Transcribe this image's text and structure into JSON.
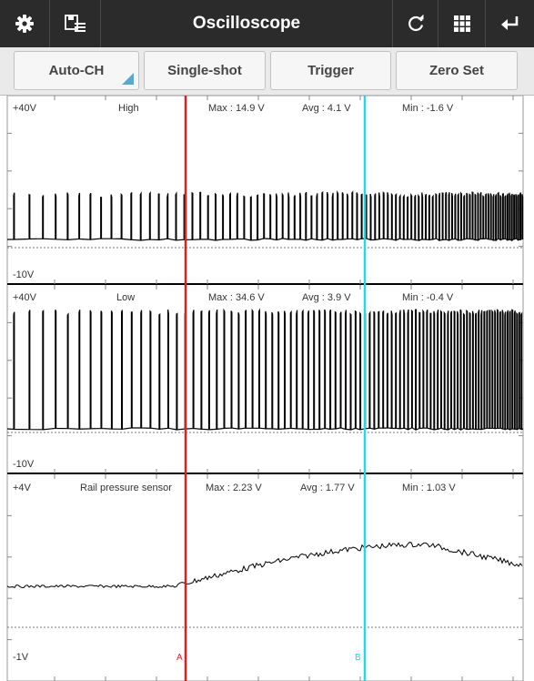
{
  "toolbar": {
    "title": "Oscilloscope",
    "left_icons": [
      "gear-icon",
      "save-list-icon"
    ],
    "right_icons": [
      "refresh-icon",
      "grid-icon",
      "back-icon"
    ]
  },
  "buttons": {
    "auto_ch": "Auto-CH",
    "single_shot": "Single-shot",
    "trigger": "Trigger",
    "zero_set": "Zero Set"
  },
  "channels": [
    {
      "name": "High",
      "top_scale": "+40V",
      "bottom_scale": "-10V",
      "max": "Max : 14.9 V",
      "avg": "Avg : 4.1 V",
      "min": "Min : -1.6 V"
    },
    {
      "name": "Low",
      "top_scale": "+40V",
      "bottom_scale": "-10V",
      "max": "Max : 34.6 V",
      "avg": "Avg : 3.9 V",
      "min": "Min : -0.4 V"
    },
    {
      "name": "Rail pressure sensor",
      "top_scale": "+4V",
      "bottom_scale": "-1V",
      "max": "Max : 2.23 V",
      "avg": "Avg : 1.77 V",
      "min": "Min : 1.03 V"
    }
  ],
  "cursors": {
    "a_label": "A",
    "b_label": "B",
    "a_color": "#e02020",
    "b_color": "#28d6e6"
  },
  "colors": {
    "topbar": "#2b2b2b",
    "trace": "#000000",
    "accent": "#5aa7d4"
  }
}
